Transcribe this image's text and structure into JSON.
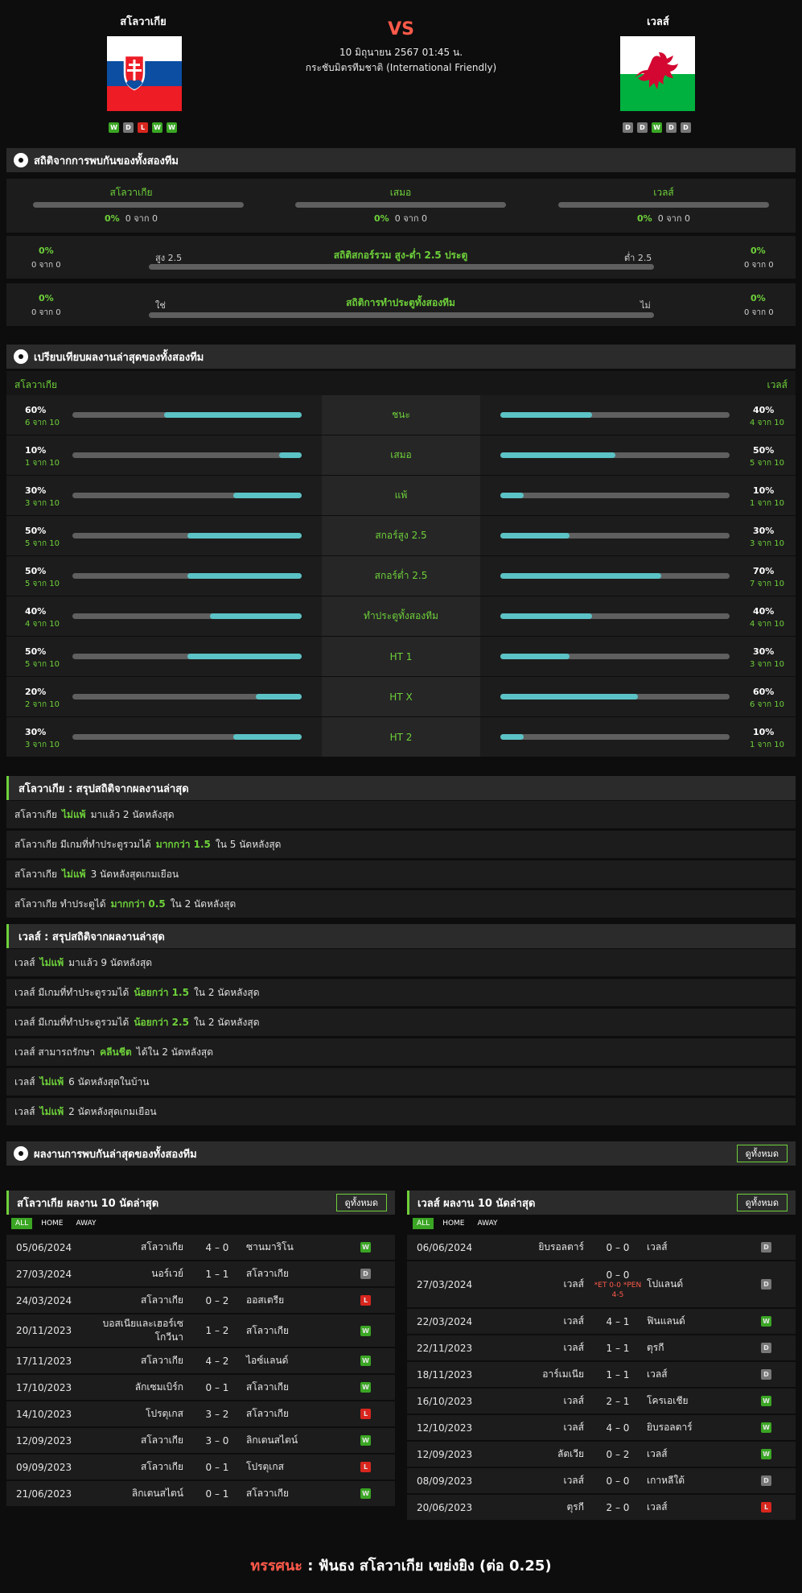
{
  "header": {
    "home": "สโลวาเกีย",
    "away": "เวลส์",
    "vs": "VS",
    "datetime": "10 มิถุนายน 2567 01:45 น.",
    "competition": "กระชับมิตรทีมชาติ (International Friendly)",
    "home_form": [
      "W",
      "D",
      "L",
      "W",
      "W"
    ],
    "away_form": [
      "D",
      "D",
      "W",
      "D",
      "D"
    ]
  },
  "h2h": {
    "title": "สถิติจากการพบกันของทั้งสองทีม",
    "cols": [
      {
        "label": "สโลวาเกีย",
        "pct": "0%",
        "count": "0 จาก 0"
      },
      {
        "label": "เสมอ",
        "pct": "0%",
        "count": "0 จาก 0"
      },
      {
        "label": "เวลส์",
        "pct": "0%",
        "count": "0 จาก 0"
      }
    ],
    "ou": {
      "title": "สถิติสกอร์รวม สูง-ต่ำ 2.5 ประตู",
      "left_label": "สูง 2.5",
      "right_label": "ต่ำ 2.5",
      "lpct": "0%",
      "lcount": "0 จาก 0",
      "rpct": "0%",
      "rcount": "0 จาก 0"
    },
    "btts": {
      "title": "สถิติการทำประตูทั้งสองทีม",
      "left_label": "ใช่",
      "right_label": "ไม่",
      "lpct": "0%",
      "lcount": "0 จาก 0",
      "rpct": "0%",
      "rcount": "0 จาก 0"
    }
  },
  "compare": {
    "title": "เปรียบเทียบผลงานล่าสุดของทั้งสองทีม",
    "home": "สโลวาเกีย",
    "away": "เวลส์",
    "rows": [
      {
        "label": "ชนะ",
        "hp": "60%",
        "hc": "6 จาก 10",
        "hv": 0.6,
        "ap": "40%",
        "ac": "4 จาก 10",
        "av": 0.4
      },
      {
        "label": "เสมอ",
        "hp": "10%",
        "hc": "1 จาก 10",
        "hv": 0.1,
        "ap": "50%",
        "ac": "5 จาก 10",
        "av": 0.5
      },
      {
        "label": "แพ้",
        "hp": "30%",
        "hc": "3 จาก 10",
        "hv": 0.3,
        "ap": "10%",
        "ac": "1 จาก 10",
        "av": 0.1
      },
      {
        "label": "สกอร์สูง 2.5",
        "hp": "50%",
        "hc": "5 จาก 10",
        "hv": 0.5,
        "ap": "30%",
        "ac": "3 จาก 10",
        "av": 0.3
      },
      {
        "label": "สกอร์ต่ำ 2.5",
        "hp": "50%",
        "hc": "5 จาก 10",
        "hv": 0.5,
        "ap": "70%",
        "ac": "7 จาก 10",
        "av": 0.7
      },
      {
        "label": "ทำประตูทั้งสองทีม",
        "hp": "40%",
        "hc": "4 จาก 10",
        "hv": 0.4,
        "ap": "40%",
        "ac": "4 จาก 10",
        "av": 0.4
      },
      {
        "label": "HT 1",
        "hp": "50%",
        "hc": "5 จาก 10",
        "hv": 0.5,
        "ap": "30%",
        "ac": "3 จาก 10",
        "av": 0.3
      },
      {
        "label": "HT X",
        "hp": "20%",
        "hc": "2 จาก 10",
        "hv": 0.2,
        "ap": "60%",
        "ac": "6 จาก 10",
        "av": 0.6
      },
      {
        "label": "HT 2",
        "hp": "30%",
        "hc": "3 จาก 10",
        "hv": 0.3,
        "ap": "10%",
        "ac": "1 จาก 10",
        "av": 0.1
      }
    ]
  },
  "home_summary": {
    "title": "สโลวาเกีย : สรุปสถิติจากผลงานล่าสุด",
    "rows": [
      {
        "a": "สโลวาเกีย",
        "b": "ไม่แพ้",
        "c": "มาแล้ว 2 นัดหลังสุด"
      },
      {
        "a": "สโลวาเกีย มีเกมที่ทำประตูรวมได้",
        "b": "มากกว่า 1.5",
        "c": "ใน 5 นัดหลังสุด"
      },
      {
        "a": "สโลวาเกีย",
        "b": "ไม่แพ้",
        "c": "3 นัดหลังสุดเกมเยือน"
      },
      {
        "a": "สโลวาเกีย ทำประตูได้",
        "b": "มากกว่า 0.5",
        "c": "ใน 2 นัดหลังสุด"
      }
    ]
  },
  "away_summary": {
    "title": "เวลส์ : สรุปสถิติจากผลงานล่าสุด",
    "rows": [
      {
        "a": "เวลส์",
        "b": "ไม่แพ้",
        "c": "มาแล้ว 9 นัดหลังสุด"
      },
      {
        "a": "เวลส์ มีเกมที่ทำประตูรวมได้",
        "b": "น้อยกว่า 1.5",
        "c": "ใน 2 นัดหลังสุด"
      },
      {
        "a": "เวลส์ มีเกมที่ทำประตูรวมได้",
        "b": "น้อยกว่า 2.5",
        "c": "ใน 2 นัดหลังสุด"
      },
      {
        "a": "เวลส์ สามารถรักษา",
        "b": "คลีนชีต",
        "c": "ได้ใน 2 นัดหลังสุด"
      },
      {
        "a": "เวลส์",
        "b": "ไม่แพ้",
        "c": "6 นัดหลังสุดในบ้าน"
      },
      {
        "a": "เวลส์",
        "b": "ไม่แพ้",
        "c": "2 นัดหลังสุดเกมเยือน"
      }
    ]
  },
  "h2h_results": {
    "title": "ผลงานการพบกันล่าสุดของทั้งสองทีม",
    "more": "ดูทั้งหมด"
  },
  "home_last": {
    "title": "สโลวาเกีย ผลงาน 10 นัดล่าสุด",
    "more": "ดูทั้งหมด",
    "tabs": [
      "ALL",
      "HOME",
      "AWAY"
    ],
    "matches": [
      {
        "date": "05/06/2024",
        "home": "สโลวาเกีย",
        "score": "4 – 0",
        "away": "ซานมาริโน",
        "res": "W"
      },
      {
        "date": "27/03/2024",
        "home": "นอร์เวย์",
        "score": "1 – 1",
        "away": "สโลวาเกีย",
        "res": "D"
      },
      {
        "date": "24/03/2024",
        "home": "สโลวาเกีย",
        "score": "0 – 2",
        "away": "ออสเตรีย",
        "res": "L"
      },
      {
        "date": "20/11/2023",
        "home": "บอสเนียและเฮอร์เซ",
        "home2": "โกวีนา",
        "score": "1 – 2",
        "away": "สโลวาเกีย",
        "res": "W"
      },
      {
        "date": "17/11/2023",
        "home": "สโลวาเกีย",
        "score": "4 – 2",
        "away": "ไอซ์แลนด์",
        "res": "W"
      },
      {
        "date": "17/10/2023",
        "home": "ลักเซมเบิร์ก",
        "score": "0 – 1",
        "away": "สโลวาเกีย",
        "res": "W"
      },
      {
        "date": "14/10/2023",
        "home": "โปรตุเกส",
        "score": "3 – 2",
        "away": "สโลวาเกีย",
        "res": "L"
      },
      {
        "date": "12/09/2023",
        "home": "สโลวาเกีย",
        "score": "3 – 0",
        "away": "ลิกเตนสไตน์",
        "res": "W"
      },
      {
        "date": "09/09/2023",
        "home": "สโลวาเกีย",
        "score": "0 – 1",
        "away": "โปรตุเกส",
        "res": "L"
      },
      {
        "date": "21/06/2023",
        "home": "ลิกเตนสไตน์",
        "score": "0 – 1",
        "away": "สโลวาเกีย",
        "res": "W"
      }
    ]
  },
  "away_last": {
    "title": "เวลส์ ผลงาน 10 นัดล่าสุด",
    "more": "ดูทั้งหมด",
    "tabs": [
      "ALL",
      "HOME",
      "AWAY"
    ],
    "matches": [
      {
        "date": "06/06/2024",
        "home": "ยิบรอลตาร์",
        "score": "0 – 0",
        "away": "เวลส์",
        "res": "D"
      },
      {
        "date": "27/03/2024",
        "home": "เวลส์",
        "score": "0 – 0",
        "note1": "*ET 0-0 *PEN",
        "note2": "4-5",
        "away": "โปแลนด์",
        "res": "D"
      },
      {
        "date": "22/03/2024",
        "home": "เวลส์",
        "score": "4 – 1",
        "away": "ฟินแลนด์",
        "res": "W"
      },
      {
        "date": "22/11/2023",
        "home": "เวลส์",
        "score": "1 – 1",
        "away": "ตุรกี",
        "res": "D"
      },
      {
        "date": "18/11/2023",
        "home": "อาร์เมเนีย",
        "score": "1 – 1",
        "away": "เวลส์",
        "res": "D"
      },
      {
        "date": "16/10/2023",
        "home": "เวลส์",
        "score": "2 – 1",
        "away": "โครเอเชีย",
        "res": "W"
      },
      {
        "date": "12/10/2023",
        "home": "เวลส์",
        "score": "4 – 0",
        "away": "ยิบรอลตาร์",
        "res": "W"
      },
      {
        "date": "12/09/2023",
        "home": "ลัตเวีย",
        "score": "0 – 2",
        "away": "เวลส์",
        "res": "W"
      },
      {
        "date": "08/09/2023",
        "home": "เวลส์",
        "score": "0 – 0",
        "away": "เกาหลีใต้",
        "res": "D"
      },
      {
        "date": "20/06/2023",
        "home": "ตุรกี",
        "score": "2 – 0",
        "away": "เวลส์",
        "res": "L"
      }
    ]
  },
  "prediction": {
    "label": "ทรรศนะ",
    "sep": ":",
    "text": "ฟันธง สโลวาเกีย เขย่งยิง (ต่อ 0.25)"
  },
  "colors": {
    "accent": "#6ed13a",
    "bar": "#5bc2c5",
    "red": "#ff5a4a"
  }
}
